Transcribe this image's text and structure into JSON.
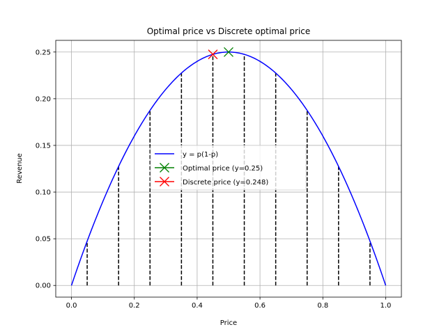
{
  "chart_data": {
    "type": "line",
    "title": "Optimal price vs Discrete optimal price",
    "xlabel": "Price",
    "ylabel": "Revenue",
    "xlim": [
      -0.05,
      1.05
    ],
    "ylim": [
      -0.0125,
      0.2625
    ],
    "grid": true,
    "legend_position": "center",
    "x_ticks": [
      "0.0",
      "0.2",
      "0.4",
      "0.6",
      "0.8",
      "1.0"
    ],
    "y_ticks": [
      "0.00",
      "0.05",
      "0.10",
      "0.15",
      "0.20",
      "0.25"
    ],
    "series": [
      {
        "name": "y = p(1-p)",
        "kind": "line",
        "color": "#0000ff",
        "x": [
          0.0,
          0.05,
          0.1,
          0.15,
          0.2,
          0.25,
          0.3,
          0.35,
          0.4,
          0.45,
          0.5,
          0.55,
          0.6,
          0.65,
          0.7,
          0.75,
          0.8,
          0.85,
          0.9,
          0.95,
          1.0
        ],
        "y": [
          0.0,
          0.0475,
          0.09,
          0.1275,
          0.16,
          0.1875,
          0.21,
          0.2275,
          0.24,
          0.2475,
          0.25,
          0.2475,
          0.24,
          0.2275,
          0.21,
          0.1875,
          0.16,
          0.1275,
          0.09,
          0.0475,
          0.0
        ]
      },
      {
        "name": "Optimal price (y=0.25)",
        "kind": "marker",
        "marker": "x",
        "color": "#008000",
        "x": [
          0.5
        ],
        "y": [
          0.25
        ]
      },
      {
        "name": "Discrete price (y=0.248)",
        "kind": "marker",
        "marker": "x",
        "color": "#ff0000",
        "x": [
          0.45
        ],
        "y": [
          0.2475
        ]
      }
    ],
    "vlines": {
      "color": "#000000",
      "style": "dashed",
      "x": [
        0.05,
        0.15,
        0.25,
        0.35,
        0.45,
        0.55,
        0.65,
        0.75,
        0.85,
        0.95
      ],
      "y": [
        0.0475,
        0.1275,
        0.1875,
        0.2275,
        0.2475,
        0.2475,
        0.2275,
        0.1875,
        0.1275,
        0.0475
      ]
    }
  }
}
